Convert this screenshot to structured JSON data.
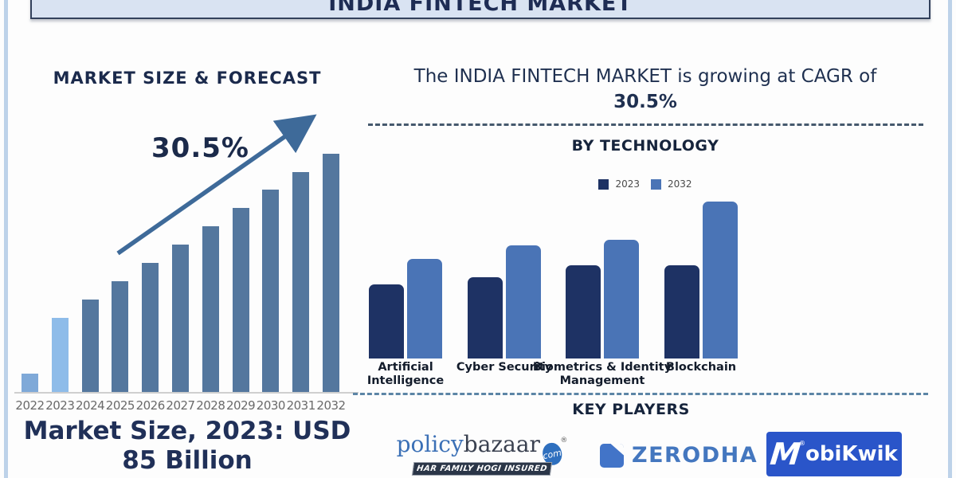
{
  "header": {
    "title": "INDIA FINTECH MARKET"
  },
  "colors": {
    "banner_fill": "#d9e3f2",
    "banner_border": "#33415c",
    "navy_text": "#1e2c54",
    "arrow": "#3e6a99",
    "left_bar_2022": "#7fa9d8",
    "left_bar_2023": "#8ebce9",
    "left_bar_default": "#54779e",
    "right_bar_2023": "#1e3264",
    "right_bar_2032": "#4a74b6",
    "dashed_line_dark": "#45596d",
    "dashed_line_blue": "#5c85a6"
  },
  "left_panel": {
    "title": "MARKET SIZE & FORECAST",
    "cagr_label": "30.5%",
    "note_line1": "Market Size, 2023: USD",
    "note_line2": "85 Billion"
  },
  "right_panel": {
    "growth_line1": "The INDIA FINTECH MARKET is growing at CAGR of",
    "growth_line2": "30.5%",
    "section_title": "BY TECHNOLOGY",
    "key_players_title": "KEY PLAYERS"
  },
  "key_players": {
    "policybazaar": {
      "word1": "policy",
      "word2": "bazaar",
      "badge": "com",
      "reg": "®",
      "tagline": "HAR FAMILY HOGI INSURED"
    },
    "zerodha": {
      "name": "ZERODHA"
    },
    "mobikwik": {
      "m": "M",
      "reg": "®",
      "rest": "obiKwik"
    }
  },
  "chart_data": [
    {
      "type": "bar",
      "title": "MARKET SIZE & FORECAST",
      "categories": [
        "2022",
        "2023",
        "2024",
        "2025",
        "2026",
        "2027",
        "2028",
        "2029",
        "2030",
        "2031",
        "2032"
      ],
      "values": [
        24,
        94,
        117,
        140,
        163,
        186,
        209,
        232,
        255,
        277,
        300
      ],
      "values_unit": "relative_bar_height_px_no_y_axis_shown",
      "bar_colors": [
        "#7fa9d8",
        "#8ebce9",
        "#54779e",
        "#54779e",
        "#54779e",
        "#54779e",
        "#54779e",
        "#54779e",
        "#54779e",
        "#54779e",
        "#54779e"
      ],
      "annotation": "30.5%",
      "known_point": {
        "year": "2023",
        "value": "USD 85 Billion"
      },
      "xlabel": "",
      "ylabel": "",
      "grid": false,
      "legend_position": "none"
    },
    {
      "type": "grouped_bar",
      "title": "BY TECHNOLOGY",
      "categories": [
        "Artificial Intelligence",
        "Cyber Security",
        "Biometrics & Identity Management",
        "Blockchain"
      ],
      "series": [
        {
          "name": "2023",
          "values": [
            93,
            102,
            117,
            117
          ],
          "color": "#1e3264"
        },
        {
          "name": "2032",
          "values": [
            125,
            142,
            149,
            197
          ],
          "color": "#4a74b6"
        }
      ],
      "values_unit": "relative_bar_height_px_no_y_axis_shown",
      "grid": false,
      "legend_position": "top"
    }
  ]
}
